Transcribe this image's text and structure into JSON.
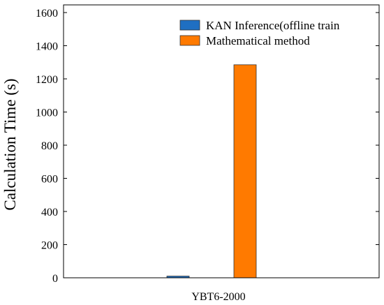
{
  "chart_data": {
    "type": "bar",
    "categories": [
      "YBT6-2000"
    ],
    "series": [
      {
        "name": "KAN Inference(offline train",
        "values": [
          10
        ],
        "color": "#1f6fc2"
      },
      {
        "name": "Mathematical method",
        "values": [
          1285
        ],
        "color": "#ff7a00"
      }
    ],
    "ylabel": "Calculation Time (s)",
    "xlabel": "",
    "ylim": [
      0,
      1600
    ],
    "yticks": [
      0,
      200,
      400,
      600,
      800,
      1000,
      1200,
      1400,
      1600
    ],
    "grid": false,
    "legend_position": "top-right"
  }
}
